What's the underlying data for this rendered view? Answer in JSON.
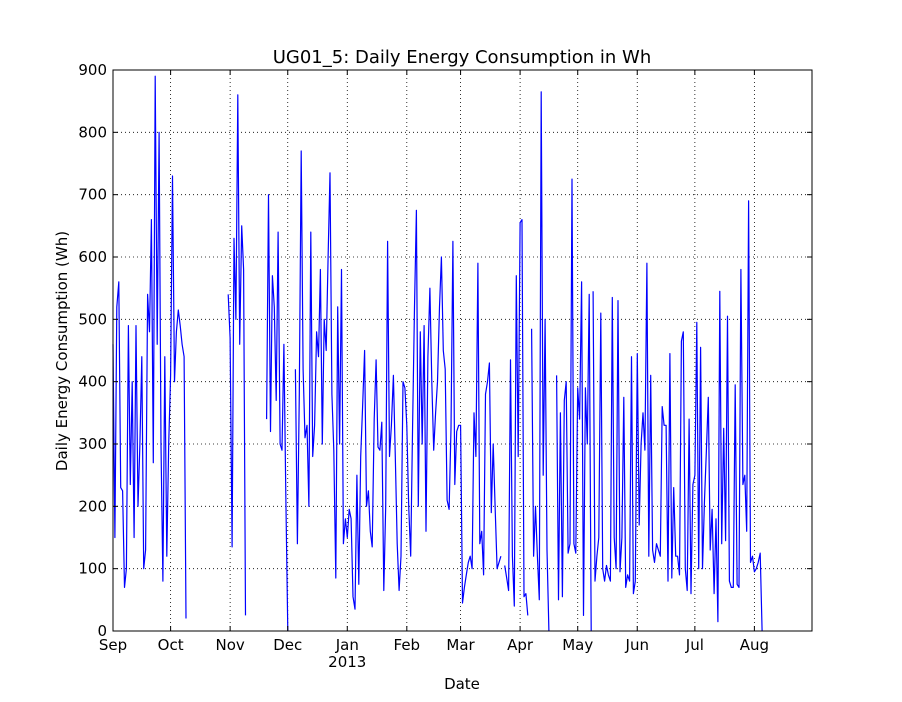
{
  "chart_data": {
    "type": "line",
    "title": "UG01_5: Daily Energy Consumption in Wh",
    "xlabel": "Date",
    "ylabel": "Daily Energy Consumption (Wh)",
    "xlim": [
      "2012-09-01",
      "2013-08-31"
    ],
    "ylim": [
      0,
      900
    ],
    "grid": true,
    "legend": "none",
    "y_ticks": [
      0,
      100,
      200,
      300,
      400,
      500,
      600,
      700,
      800,
      900
    ],
    "x_ticks": [
      {
        "date": "2012-09-01",
        "label": "Sep"
      },
      {
        "date": "2012-10-01",
        "label": "Oct"
      },
      {
        "date": "2012-11-01",
        "label": "Nov"
      },
      {
        "date": "2012-12-01",
        "label": "Dec"
      },
      {
        "date": "2013-01-01",
        "label": "Jan",
        "sublabel": "2013"
      },
      {
        "date": "2013-02-01",
        "label": "Feb"
      },
      {
        "date": "2013-03-01",
        "label": "Mar"
      },
      {
        "date": "2013-04-01",
        "label": "Apr"
      },
      {
        "date": "2013-05-01",
        "label": "May"
      },
      {
        "date": "2013-06-01",
        "label": "Jun"
      },
      {
        "date": "2013-07-01",
        "label": "Jul"
      },
      {
        "date": "2013-08-01",
        "label": "Aug"
      }
    ],
    "series": [
      {
        "color": "#0000ff",
        "segments": [
          {
            "start": "2012-09-01",
            "values": [
              460,
              150,
              520,
              560,
              230,
              225,
              70,
              100,
              490,
              235,
              400,
              150,
              490,
              200,
              300,
              440,
              100,
              130,
              540,
              480,
              660,
              270,
              890,
              460,
              800,
              300,
              80,
              440,
              120,
              300,
              410,
              730,
              400,
              480,
              515,
              490,
              460,
              440,
              20
            ]
          },
          {
            "start": "2012-10-31",
            "values": [
              540,
              470,
              135,
              630,
              500,
              860,
              460,
              650,
              580,
              25
            ]
          },
          {
            "start": "2012-11-20",
            "values": [
              340,
              700,
              320,
              570,
              520,
              370,
              640,
              300,
              290,
              460,
              220,
              0
            ]
          },
          {
            "start": "2012-12-05",
            "values": [
              420,
              140,
              380,
              770,
              420,
              310,
              330,
              200,
              640,
              280,
              330,
              480,
              440,
              580,
              300,
              500,
              450,
              600,
              735,
              380,
              290,
              85,
              520,
              300,
              580,
              140,
              180,
              150,
              195,
              180,
              55,
              35,
              250,
              75,
              280,
              360,
              450,
              200,
              225,
              160,
              135,
              340,
              435,
              295,
              290,
              335,
              65,
              200,
              625,
              280,
              330,
              410,
              280,
              140,
              65,
              120,
              400,
              390,
              330,
              200,
              120,
              330,
              520,
              675,
              200,
              480,
              300,
              490,
              160,
              440,
              550,
              400,
              290,
              350,
              400,
              520,
              600,
              450,
              420,
              210,
              195,
              325,
              625,
              235,
              320,
              330,
              330,
              45,
              70,
              90,
              110,
              120,
              100,
              350,
              280,
              590,
              140,
              160,
              90,
              380,
              400,
              430,
              190,
              300,
              200,
              100,
              110,
              120
            ]
          },
          {
            "start": "2013-03-24",
            "values": [
              105,
              85,
              65,
              435,
              120,
              40,
              570,
              280,
              655,
              660,
              55,
              60,
              25
            ]
          },
          {
            "start": "2013-04-07",
            "values": [
              485,
              120,
              200,
              120,
              50,
              865,
              250,
              500,
              130,
              0
            ]
          },
          {
            "start": "2013-04-20",
            "values": [
              410,
              50,
              350,
              55,
              370,
              400,
              125,
              140,
              725,
              140,
              125,
              390,
              340,
              560,
              25,
              390,
              300,
              540,
              0
            ]
          },
          {
            "start": "2013-05-09",
            "values": [
              545,
              80,
              120,
              150,
              510,
              100,
              80,
              105,
              90,
              80,
              535,
              150,
              100,
              530,
              95,
              150,
              375,
              70,
              90,
              80,
              440,
              60,
              80,
              445,
              170,
              300,
              350,
              290,
              590,
              120,
              410,
              130,
              110,
              140,
              130,
              120,
              360,
              330,
              330,
              80,
              445,
              85,
              230,
              120,
              120,
              90,
              465,
              480,
              100,
              65,
              340,
              60,
              235,
              250,
              495,
              100,
              455,
              100,
              210,
              290,
              375,
              130,
              195,
              60,
              180,
              15,
              545,
              140,
              325,
              145,
              505,
              80,
              70,
              70,
              395,
              75,
              70,
              580,
              235,
              250,
              160,
              690,
              110,
              120,
              95,
              100,
              110,
              125,
              0
            ]
          }
        ]
      }
    ]
  }
}
